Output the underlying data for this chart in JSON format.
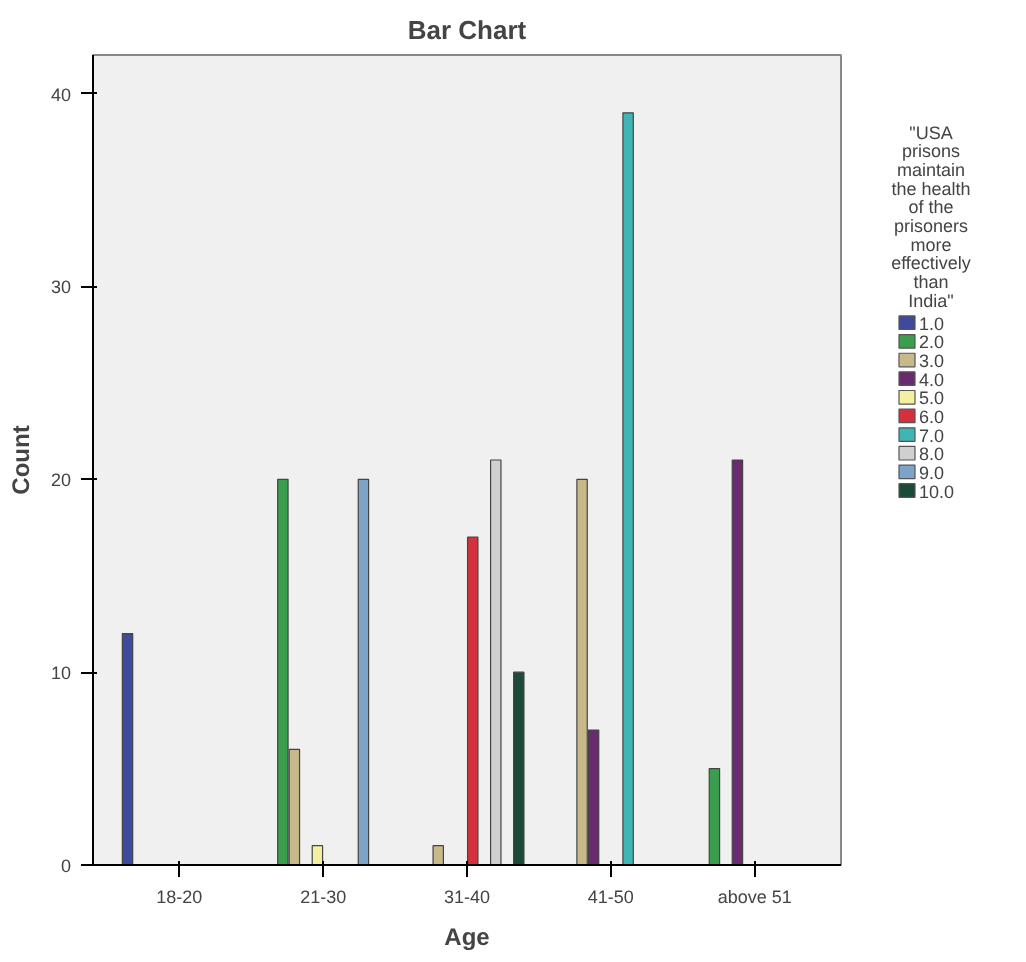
{
  "chart_data": {
    "type": "bar",
    "title": "Bar Chart",
    "xlabel": "Age",
    "ylabel": "Count",
    "legend_title": "\"USA prisons maintain the health of the prisoners more effectively than India\"",
    "categories": [
      "18-20",
      "21-30",
      "31-40",
      "41-50",
      "above 51"
    ],
    "ylim": [
      0,
      42
    ],
    "yticks": [
      0,
      10,
      20,
      30,
      40
    ],
    "legend": "right",
    "series": [
      {
        "name": "1.0",
        "color": "#3d4a9e",
        "values": [
          12,
          null,
          null,
          null,
          null
        ]
      },
      {
        "name": "2.0",
        "color": "#3a9e4f",
        "values": [
          null,
          20,
          null,
          null,
          5
        ]
      },
      {
        "name": "3.0",
        "color": "#c8b98a",
        "values": [
          null,
          6,
          1,
          20,
          null
        ]
      },
      {
        "name": "4.0",
        "color": "#6a2a6e",
        "values": [
          null,
          null,
          null,
          7,
          21
        ]
      },
      {
        "name": "5.0",
        "color": "#f5f0a0",
        "values": [
          null,
          1,
          null,
          null,
          null
        ]
      },
      {
        "name": "6.0",
        "color": "#d4303e",
        "values": [
          null,
          null,
          17,
          null,
          null
        ]
      },
      {
        "name": "7.0",
        "color": "#3fb5b5",
        "values": [
          null,
          null,
          null,
          39,
          null
        ]
      },
      {
        "name": "8.0",
        "color": "#d0d0d0",
        "values": [
          null,
          null,
          21,
          null,
          null
        ]
      },
      {
        "name": "9.0",
        "color": "#7ea3c8",
        "values": [
          null,
          20,
          null,
          null,
          null
        ]
      },
      {
        "name": "10.0",
        "color": "#1b4a38",
        "values": [
          null,
          null,
          10,
          null,
          null
        ]
      }
    ]
  }
}
